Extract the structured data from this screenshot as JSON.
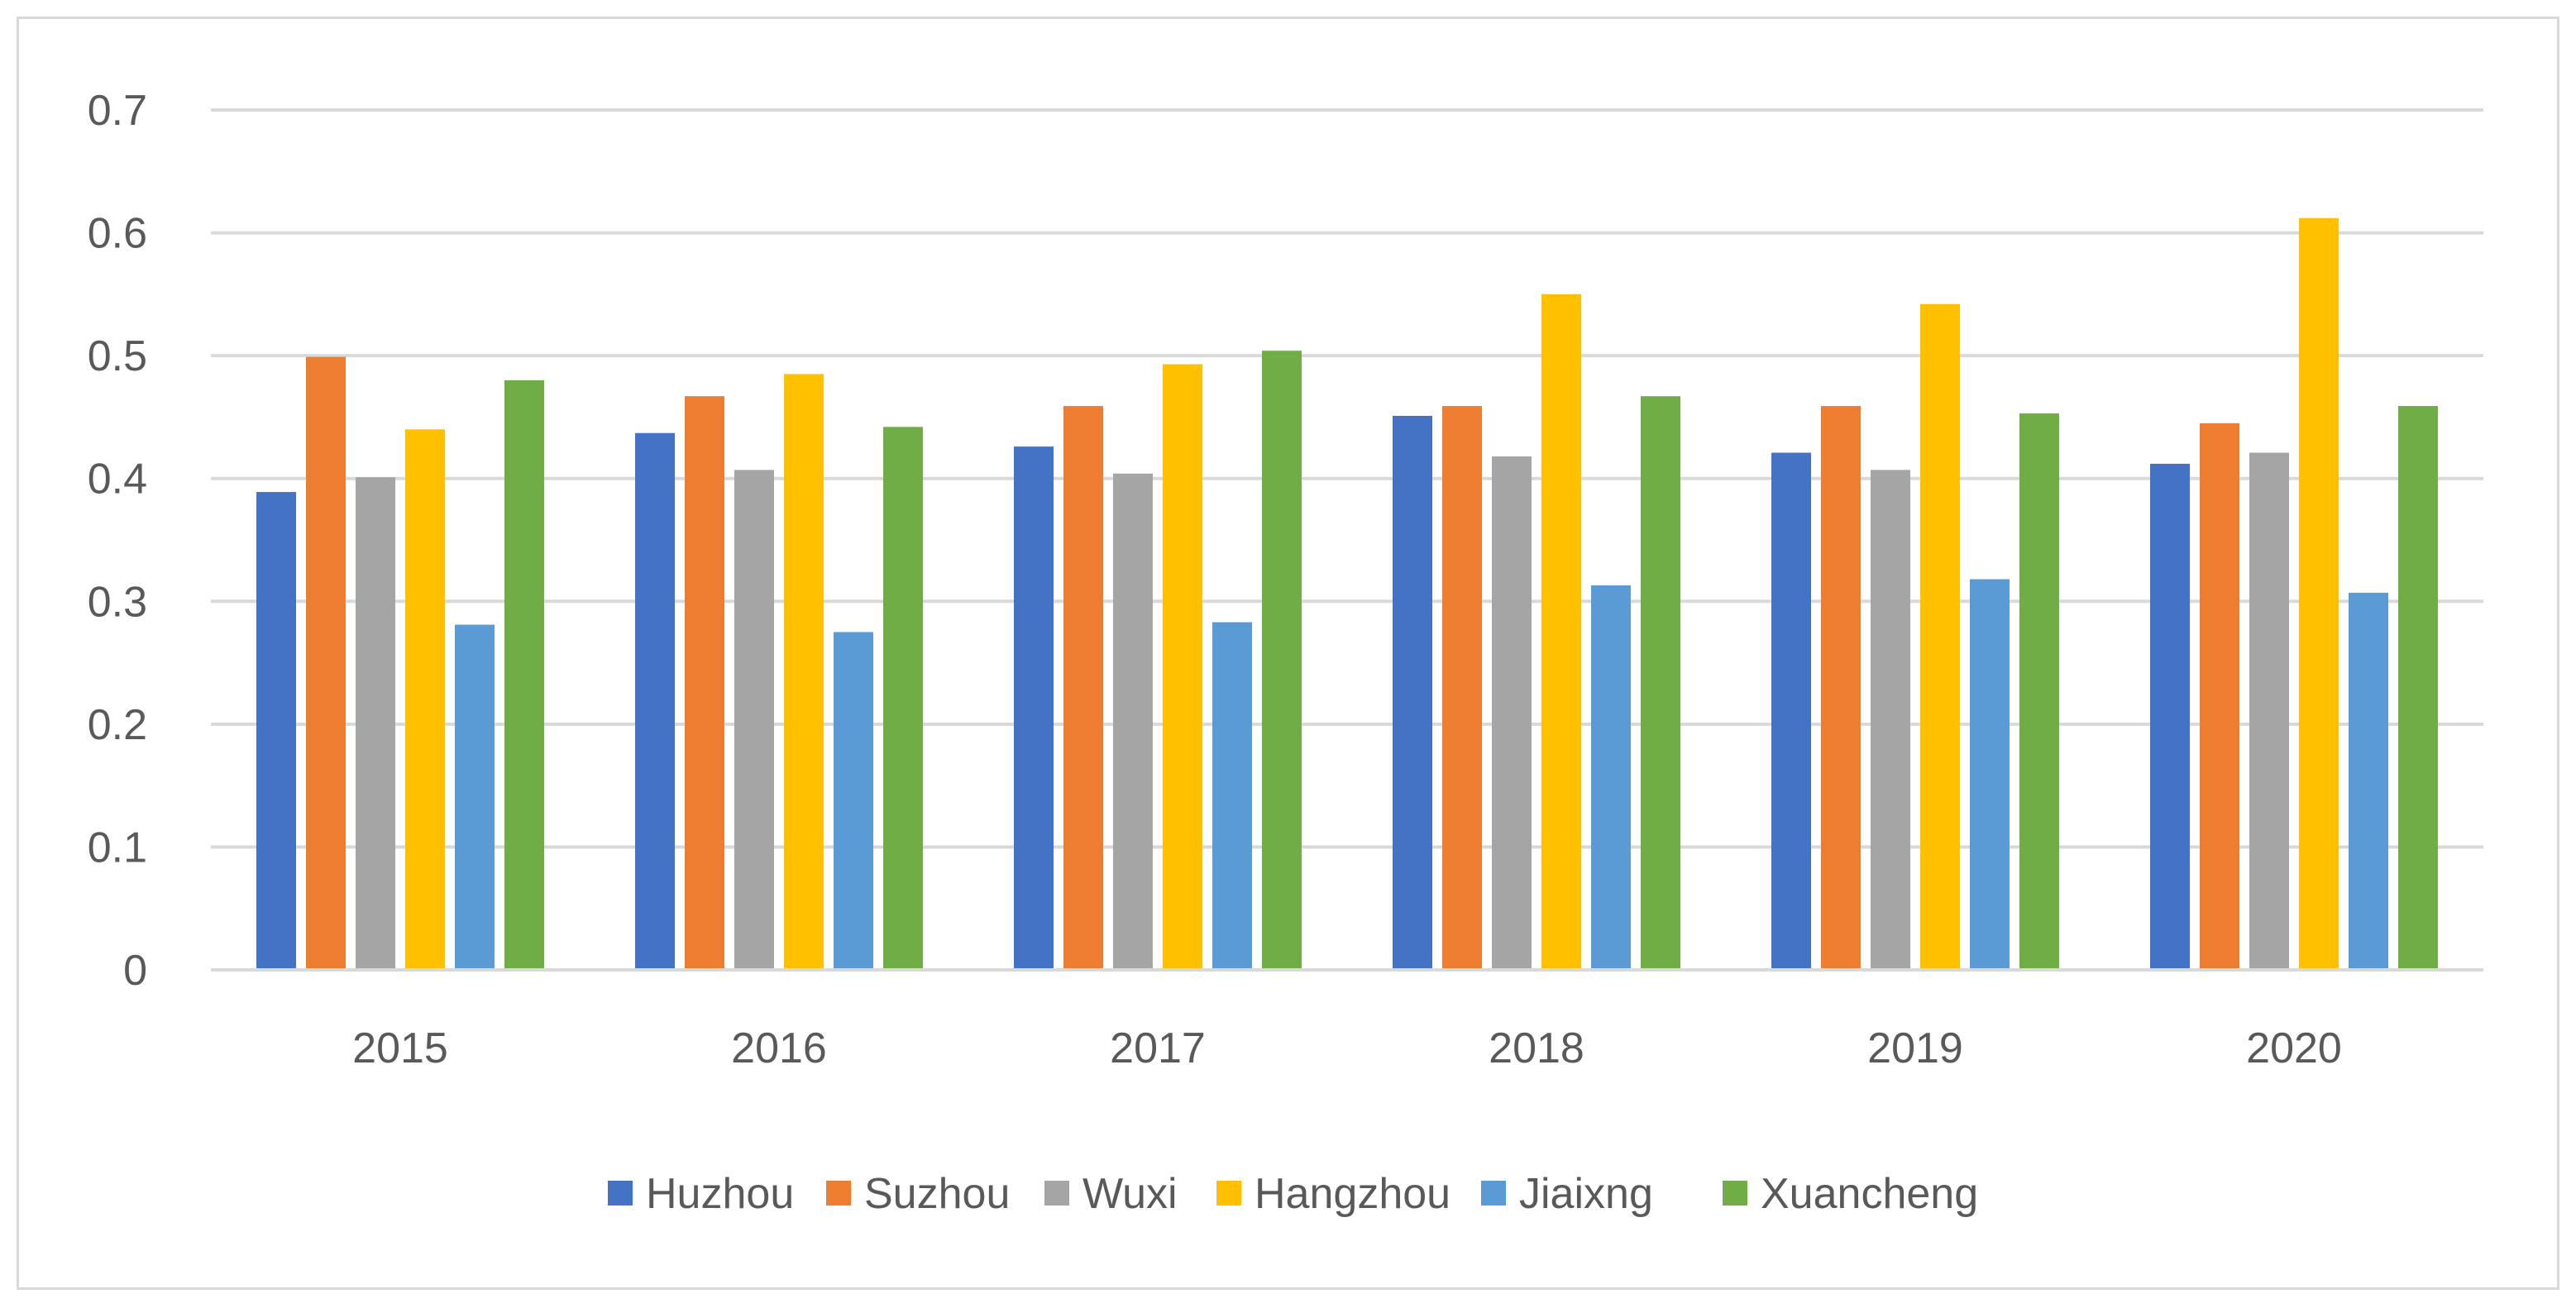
{
  "chart_data": {
    "type": "bar",
    "title": "",
    "xlabel": "",
    "ylabel": "",
    "categories": [
      "2015",
      "2016",
      "2017",
      "2018",
      "2019",
      "2020"
    ],
    "ylim": [
      0,
      0.7
    ],
    "yticks": [
      "0",
      "0.1",
      "0.2",
      "0.3",
      "0.4",
      "0.5",
      "0.6",
      "0.7"
    ],
    "grid": true,
    "legend_position": "bottom",
    "series": [
      {
        "name": "Huzhou",
        "color": "#4472C4",
        "values": [
          0.389,
          0.437,
          0.426,
          0.451,
          0.421,
          0.412
        ]
      },
      {
        "name": "Suzhou",
        "color": "#ED7D31",
        "values": [
          0.499,
          0.467,
          0.459,
          0.459,
          0.459,
          0.445
        ]
      },
      {
        "name": "Wuxi",
        "color": "#A5A5A5",
        "values": [
          0.401,
          0.407,
          0.404,
          0.418,
          0.407,
          0.421
        ]
      },
      {
        "name": "Hangzhou",
        "color": "#FFC000",
        "values": [
          0.44,
          0.485,
          0.493,
          0.55,
          0.542,
          0.612
        ]
      },
      {
        "name": "Jiaixng",
        "color": "#5B9BD5",
        "values": [
          0.281,
          0.275,
          0.283,
          0.313,
          0.318,
          0.307
        ]
      },
      {
        "name": "Xuancheng",
        "color": "#70AD47",
        "values": [
          0.48,
          0.442,
          0.504,
          0.467,
          0.453,
          0.459
        ]
      }
    ]
  }
}
